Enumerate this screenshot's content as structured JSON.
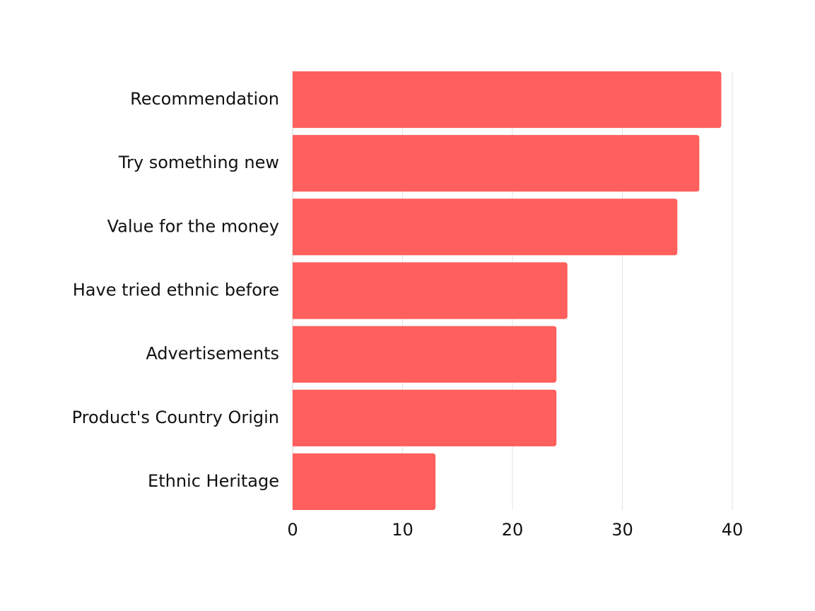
{
  "chart_data": {
    "type": "bar",
    "orientation": "horizontal",
    "categories": [
      "Recommendation",
      "Try something new",
      "Value for the money",
      "Have tried ethnic before",
      "Advertisements ",
      "Product's Country Origin",
      "Ethnic Heritage"
    ],
    "values": [
      39,
      37,
      35,
      25,
      24,
      24,
      13
    ],
    "title": "",
    "xlabel": "",
    "ylabel": "",
    "xlim": [
      0,
      40
    ],
    "xticks": [
      0,
      10,
      20,
      30,
      40
    ],
    "grid": "vertical",
    "legend": "none",
    "bar_color": "#ff5f5d"
  }
}
